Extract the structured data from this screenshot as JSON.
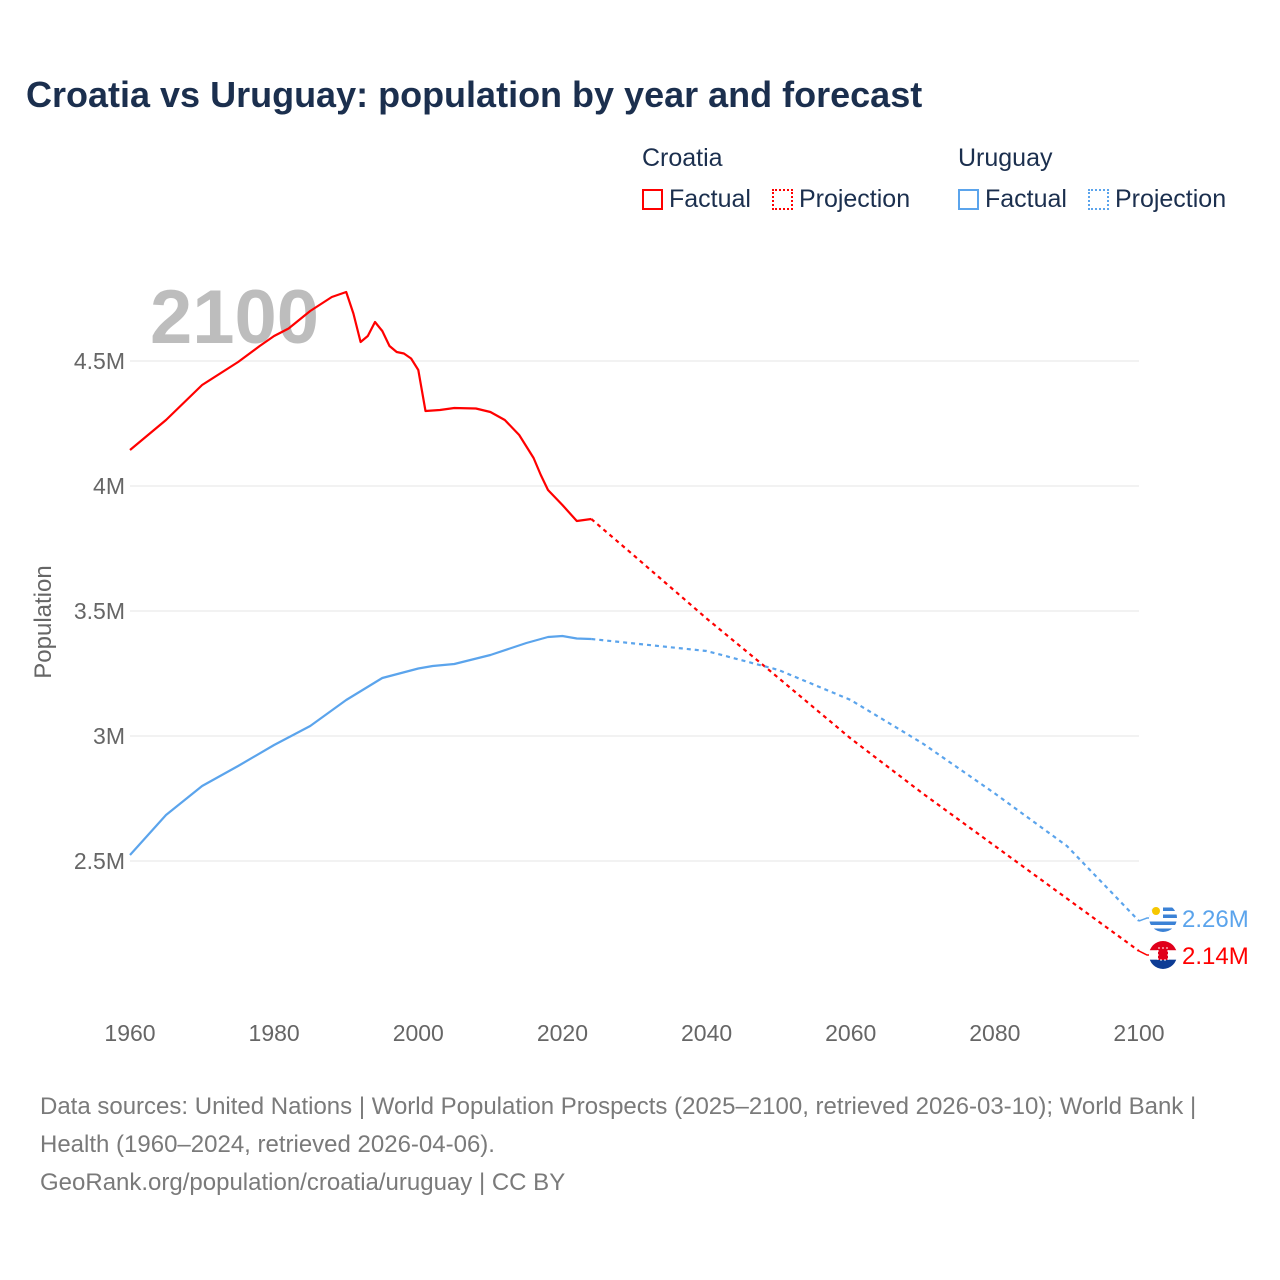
{
  "title": "Croatia vs Uruguay: population by year and forecast",
  "legend": {
    "groups": [
      {
        "name": "Croatia",
        "color": "#ff0000",
        "items": [
          "Factual",
          "Projection"
        ]
      },
      {
        "name": "Uruguay",
        "color": "#5ba4ec",
        "items": [
          "Factual",
          "Projection"
        ]
      }
    ]
  },
  "footer": {
    "sources": "Data sources: United Nations | World Population Prospects (2025–2100, retrieved 2026-03-10); World Bank | Health (1960–2024, retrieved 2026-04-06).",
    "link": "GeoRank.org/population/croatia/uruguay | CC BY"
  },
  "chart_data": {
    "type": "line",
    "title": "Croatia vs Uruguay: population by year and forecast",
    "year_watermark": "2100",
    "xlabel": "",
    "ylabel": "Population",
    "xlim": [
      1960,
      2100
    ],
    "ylim": [
      2.0,
      4.85
    ],
    "xticks": [
      1960,
      1980,
      2000,
      2020,
      2040,
      2060,
      2080,
      2100
    ],
    "xtick_labels": [
      "1960",
      "1980",
      "2000",
      "2020",
      "2040",
      "2060",
      "2080",
      "2100"
    ],
    "yticks": [
      2.5,
      3,
      3.5,
      4,
      4.5
    ],
    "ytick_labels": [
      "2.5M",
      "3M",
      "3.5M",
      "4M",
      "4.5M"
    ],
    "grid": true,
    "legend_position": "top-right",
    "series": [
      {
        "name": "Croatia",
        "color": "#ff0000",
        "end_label": "2.14M",
        "factual": [
          [
            1960,
            4.144
          ],
          [
            1965,
            4.264
          ],
          [
            1970,
            4.404
          ],
          [
            1975,
            4.496
          ],
          [
            1978,
            4.56
          ],
          [
            1980,
            4.6
          ],
          [
            1982,
            4.63
          ],
          [
            1985,
            4.7
          ],
          [
            1988,
            4.756
          ],
          [
            1990,
            4.776
          ],
          [
            1991,
            4.69
          ],
          [
            1992,
            4.576
          ],
          [
            1993,
            4.6
          ],
          [
            1994,
            4.656
          ],
          [
            1995,
            4.62
          ],
          [
            1996,
            4.56
          ],
          [
            1997,
            4.536
          ],
          [
            1998,
            4.53
          ],
          [
            1999,
            4.51
          ],
          [
            2000,
            4.464
          ],
          [
            2001,
            4.3
          ],
          [
            2003,
            4.304
          ],
          [
            2005,
            4.312
          ],
          [
            2008,
            4.31
          ],
          [
            2010,
            4.296
          ],
          [
            2012,
            4.264
          ],
          [
            2014,
            4.204
          ],
          [
            2016,
            4.112
          ],
          [
            2017,
            4.044
          ],
          [
            2018,
            3.984
          ],
          [
            2020,
            3.924
          ],
          [
            2022,
            3.86
          ],
          [
            2024,
            3.868
          ]
        ],
        "projection": [
          [
            2024,
            3.868
          ],
          [
            2030,
            3.72
          ],
          [
            2040,
            3.47
          ],
          [
            2048,
            3.28
          ],
          [
            2060,
            2.99
          ],
          [
            2070,
            2.77
          ],
          [
            2080,
            2.56
          ],
          [
            2090,
            2.35
          ],
          [
            2100,
            2.14
          ]
        ]
      },
      {
        "name": "Uruguay",
        "color": "#5ba4ec",
        "end_label": "2.26M",
        "factual": [
          [
            1960,
            2.524
          ],
          [
            1965,
            2.684
          ],
          [
            1970,
            2.8
          ],
          [
            1975,
            2.88
          ],
          [
            1980,
            2.964
          ],
          [
            1985,
            3.04
          ],
          [
            1990,
            3.144
          ],
          [
            1995,
            3.232
          ],
          [
            2000,
            3.27
          ],
          [
            2002,
            3.28
          ],
          [
            2005,
            3.288
          ],
          [
            2010,
            3.324
          ],
          [
            2015,
            3.372
          ],
          [
            2018,
            3.396
          ],
          [
            2020,
            3.4
          ],
          [
            2022,
            3.39
          ],
          [
            2024,
            3.388
          ]
        ],
        "projection": [
          [
            2024,
            3.388
          ],
          [
            2030,
            3.37
          ],
          [
            2040,
            3.34
          ],
          [
            2050,
            3.264
          ],
          [
            2060,
            3.144
          ],
          [
            2070,
            2.97
          ],
          [
            2080,
            2.77
          ],
          [
            2090,
            2.56
          ],
          [
            2100,
            2.26
          ]
        ]
      }
    ]
  }
}
